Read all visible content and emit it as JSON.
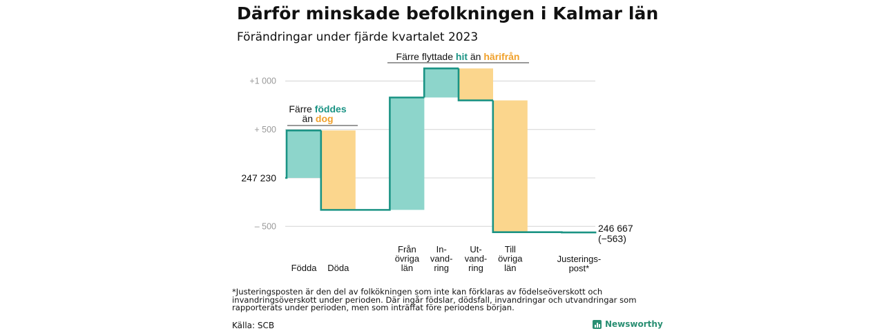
{
  "title": "Därför minskade befolkningen i Kalmar län",
  "subtitle": "Förändringar under fjärde kvartalet 2023",
  "chart_data": {
    "type": "waterfall",
    "start_label": "247 230",
    "start": 247230,
    "end_label": "246 667",
    "end_change_label": "(−563)",
    "end": 246667,
    "ylim": [
      -600,
      1050
    ],
    "yticks": [
      {
        "value": 1000,
        "label": "+1 000"
      },
      {
        "value": 500,
        "label": "+ 500"
      },
      {
        "value": -500,
        "label": "– 500"
      }
    ],
    "steps": [
      {
        "category": "Födda",
        "change": 490,
        "kind": "in"
      },
      {
        "category": "Döda",
        "change": -820,
        "kind": "out"
      },
      {
        "category": "Från övriga län",
        "change": 1160,
        "kind": "in"
      },
      {
        "category": "In- vand- ring",
        "change": 300,
        "kind": "in"
      },
      {
        "category": "Ut- vand- ring",
        "change": -330,
        "kind": "out"
      },
      {
        "category": "Till övriga län",
        "change": -1360,
        "kind": "out"
      },
      {
        "category": "Justerings- post*",
        "change": -3,
        "kind": "adjust"
      }
    ],
    "category_labels": [
      [
        "Födda"
      ],
      [
        "Döda"
      ],
      [
        "Från",
        "övriga",
        "län"
      ],
      [
        "In-",
        "vand-",
        "ring"
      ],
      [
        "Ut-",
        "vand-",
        "ring"
      ],
      [
        "Till",
        "övriga",
        "län"
      ],
      [
        "Justerings-",
        "post*"
      ]
    ],
    "annotations": {
      "births": {
        "prefix": "Färre ",
        "highlight1": "föddes",
        "line2_prefix": "än ",
        "highlight2": "dog"
      },
      "migration": {
        "prefix": "Färre flyttade ",
        "highlight1": "hit",
        "mid": " än ",
        "highlight2": "härifrån"
      }
    },
    "colors": {
      "in": "#8dd5cb",
      "out": "#fbd68d",
      "line": "#1a9384",
      "hit": "#1a9384",
      "away": "#f0a02a",
      "grid": "#d4d4d4",
      "tick": "#999999"
    }
  },
  "footnote": "*Justeringsposten är den del av folkökningen som inte kan förklaras av födelseöverskott och invandringsöverskott under perioden. Där ingår födslar, dödsfall, invandringar och utvandringar som rapporterats under perioden, men som inträffat före periodens början.",
  "source": "Källa: SCB",
  "brand": "Newsworthy"
}
